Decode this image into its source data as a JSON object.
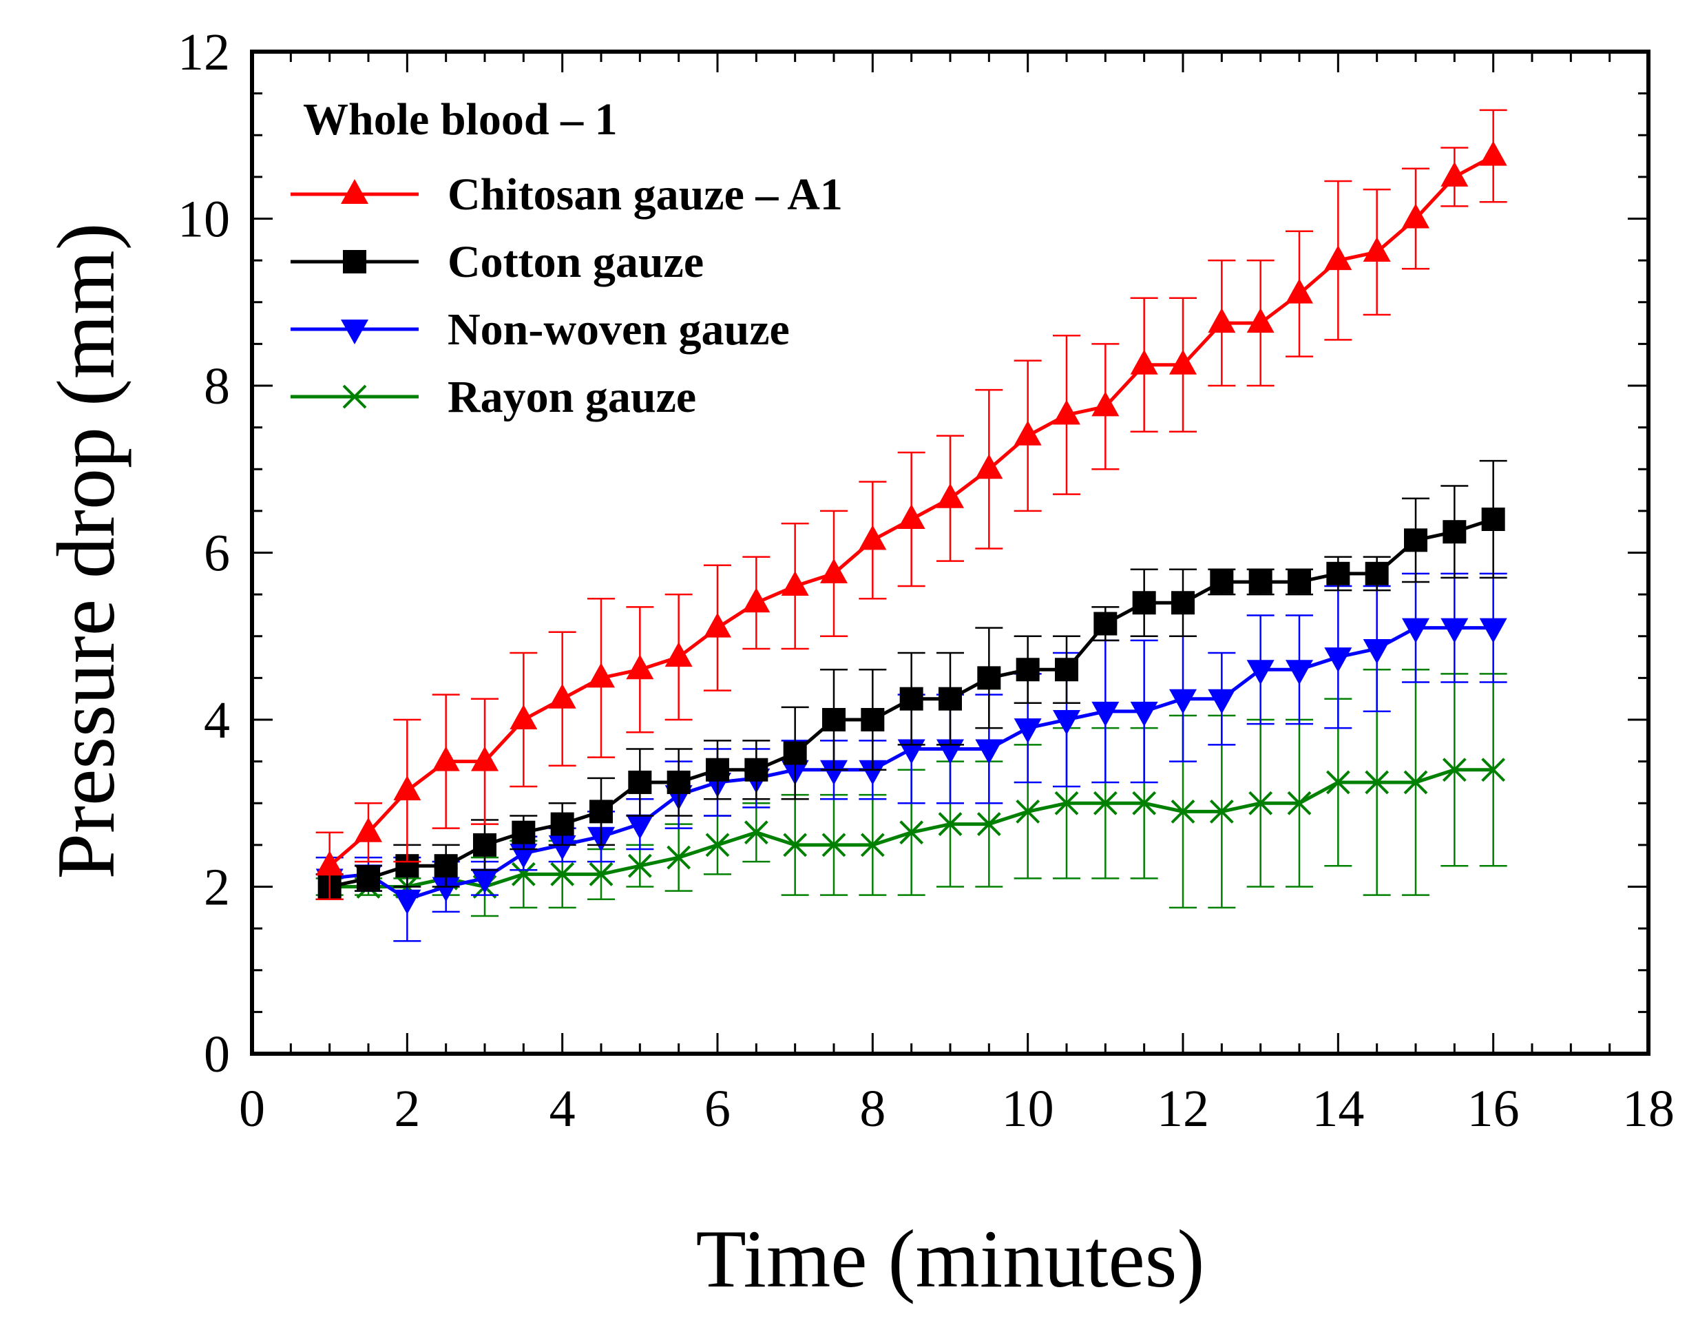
{
  "chart_data": {
    "type": "line",
    "title": "",
    "legend_title": "Whole blood – 1",
    "legend_position": "top-left",
    "xlabel": "Time (minutes)",
    "ylabel": "Pressure drop (mm)",
    "xlim": [
      0,
      18
    ],
    "ylim": [
      0,
      12
    ],
    "xticks": [
      0,
      2,
      4,
      6,
      8,
      10,
      12,
      14,
      16,
      18
    ],
    "yticks": [
      0,
      2,
      4,
      6,
      8,
      10,
      12
    ],
    "x": [
      1,
      1.5,
      2,
      2.5,
      3,
      3.5,
      4,
      4.5,
      5,
      5.5,
      6,
      6.5,
      7,
      7.5,
      8,
      8.5,
      9,
      9.5,
      10,
      10.5,
      11,
      11.5,
      12,
      12.5,
      13,
      13.5,
      14,
      14.5,
      15,
      15.5,
      16
    ],
    "series": [
      {
        "name": "Chitosan gauze – A1",
        "color": "#ff0000",
        "marker": "triangle-up",
        "values": [
          2.25,
          2.65,
          3.15,
          3.5,
          3.5,
          4.0,
          4.25,
          4.5,
          4.6,
          4.75,
          5.1,
          5.4,
          5.6,
          5.75,
          6.15,
          6.4,
          6.65,
          7.0,
          7.4,
          7.65,
          7.75,
          8.25,
          8.25,
          8.75,
          8.75,
          9.1,
          9.5,
          9.6,
          10.0,
          10.5,
          10.75
        ],
        "errors": [
          0.4,
          0.35,
          0.85,
          0.8,
          0.75,
          0.8,
          0.8,
          0.95,
          0.75,
          0.75,
          0.75,
          0.55,
          0.75,
          0.75,
          0.7,
          0.8,
          0.75,
          0.95,
          0.9,
          0.95,
          0.75,
          0.8,
          0.8,
          0.75,
          0.75,
          0.75,
          0.95,
          0.75,
          0.6,
          0.35,
          0.55
        ]
      },
      {
        "name": "Cotton gauze",
        "color": "#000000",
        "marker": "square",
        "values": [
          2.0,
          2.1,
          2.25,
          2.25,
          2.5,
          2.65,
          2.75,
          2.9,
          3.25,
          3.25,
          3.4,
          3.4,
          3.6,
          4.0,
          4.0,
          4.25,
          4.25,
          4.5,
          4.6,
          4.6,
          5.15,
          5.4,
          5.4,
          5.65,
          5.65,
          5.65,
          5.75,
          5.75,
          6.15,
          6.25,
          6.4
        ],
        "errors": [
          0.15,
          0.15,
          0.25,
          0.25,
          0.3,
          0.2,
          0.25,
          0.4,
          0.4,
          0.4,
          0.35,
          0.35,
          0.55,
          0.6,
          0.6,
          0.55,
          0.55,
          0.6,
          0.4,
          0.4,
          0.2,
          0.4,
          0.4,
          0.15,
          0.15,
          0.15,
          0.2,
          0.2,
          0.5,
          0.55,
          0.7
        ]
      },
      {
        "name": "Non-woven gauze",
        "color": "#0000ff",
        "marker": "triangle-down",
        "values": [
          2.1,
          2.15,
          1.85,
          2.0,
          2.1,
          2.4,
          2.5,
          2.6,
          2.75,
          3.1,
          3.25,
          3.3,
          3.4,
          3.4,
          3.4,
          3.65,
          3.65,
          3.65,
          3.9,
          4.0,
          4.1,
          4.1,
          4.25,
          4.25,
          4.6,
          4.6,
          4.75,
          4.85,
          5.1,
          5.1,
          5.1
        ],
        "errors": [
          0.25,
          0.2,
          0.5,
          0.3,
          0.2,
          0.2,
          0.2,
          0.3,
          0.3,
          0.4,
          0.4,
          0.35,
          0.35,
          0.35,
          0.35,
          0.65,
          0.65,
          0.65,
          0.65,
          0.8,
          0.85,
          0.85,
          0.75,
          0.55,
          0.65,
          0.65,
          0.85,
          0.75,
          0.65,
          0.65,
          0.65
        ]
      },
      {
        "name": "Rayon gauze",
        "color": "#008000",
        "marker": "x",
        "values": [
          2.0,
          2.0,
          2.0,
          2.1,
          2.0,
          2.15,
          2.15,
          2.15,
          2.25,
          2.35,
          2.5,
          2.65,
          2.5,
          2.5,
          2.5,
          2.65,
          2.75,
          2.75,
          2.9,
          3.0,
          3.0,
          3.0,
          2.9,
          2.9,
          3.0,
          3.0,
          3.25,
          3.25,
          3.25,
          3.4,
          3.4
        ],
        "errors": [
          0.1,
          0.1,
          0.1,
          0.2,
          0.35,
          0.4,
          0.4,
          0.3,
          0.25,
          0.4,
          0.35,
          0.35,
          0.6,
          0.6,
          0.6,
          0.75,
          0.75,
          0.75,
          0.8,
          0.9,
          0.9,
          0.9,
          1.15,
          1.15,
          1.0,
          1.0,
          1.0,
          1.35,
          1.35,
          1.15,
          1.15
        ]
      }
    ]
  }
}
